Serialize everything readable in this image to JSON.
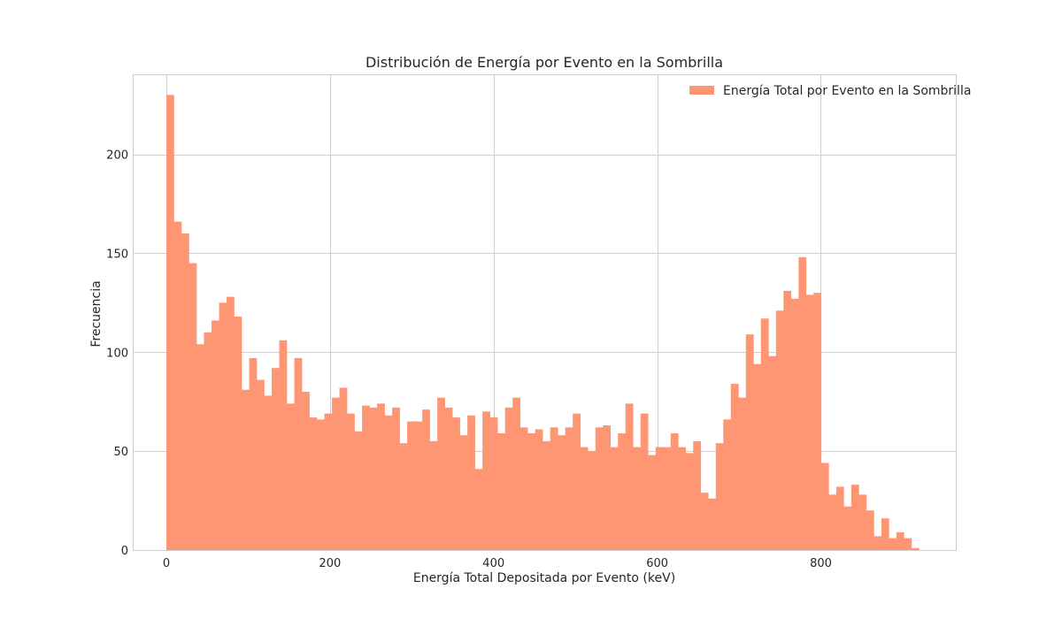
{
  "chart_data": {
    "type": "bar",
    "title": "Distribución de Energía por Evento en la Sombrilla",
    "xlabel": "Energía Total Depositada por Evento (keV)",
    "ylabel": "Frecuencia",
    "legend": {
      "label": "Energía Total por Evento en la Sombrilla",
      "placement": "top-right"
    },
    "color": "#ff9673",
    "grid": true,
    "xlim": [
      -40,
      965
    ],
    "ylim": [
      0,
      240
    ],
    "xticks": [
      0,
      200,
      400,
      600,
      800
    ],
    "xtick_labels": [
      "0",
      "200",
      "400",
      "600",
      "800"
    ],
    "yticks": [
      0,
      50,
      100,
      150,
      200
    ],
    "ytick_labels": [
      "0",
      "50",
      "100",
      "150",
      "200"
    ],
    "bin_start": 0,
    "bin_width": 9.2,
    "values": [
      230,
      166,
      160,
      145,
      104,
      110,
      116,
      125,
      128,
      118,
      81,
      97,
      86,
      78,
      92,
      106,
      74,
      97,
      80,
      67,
      66,
      69,
      77,
      82,
      69,
      60,
      73,
      72,
      74,
      68,
      72,
      54,
      65,
      65,
      71,
      55,
      77,
      72,
      67,
      58,
      68,
      41,
      70,
      67,
      59,
      72,
      77,
      62,
      59,
      61,
      55,
      62,
      58,
      62,
      69,
      52,
      50,
      62,
      63,
      52,
      59,
      74,
      52,
      69,
      48,
      52,
      52,
      59,
      52,
      49,
      55,
      29,
      26,
      54,
      66,
      84,
      77,
      109,
      94,
      117,
      98,
      121,
      131,
      127,
      148,
      129,
      130,
      44,
      28,
      32,
      22,
      33,
      28,
      20,
      7,
      16,
      6,
      9,
      6,
      1
    ]
  }
}
